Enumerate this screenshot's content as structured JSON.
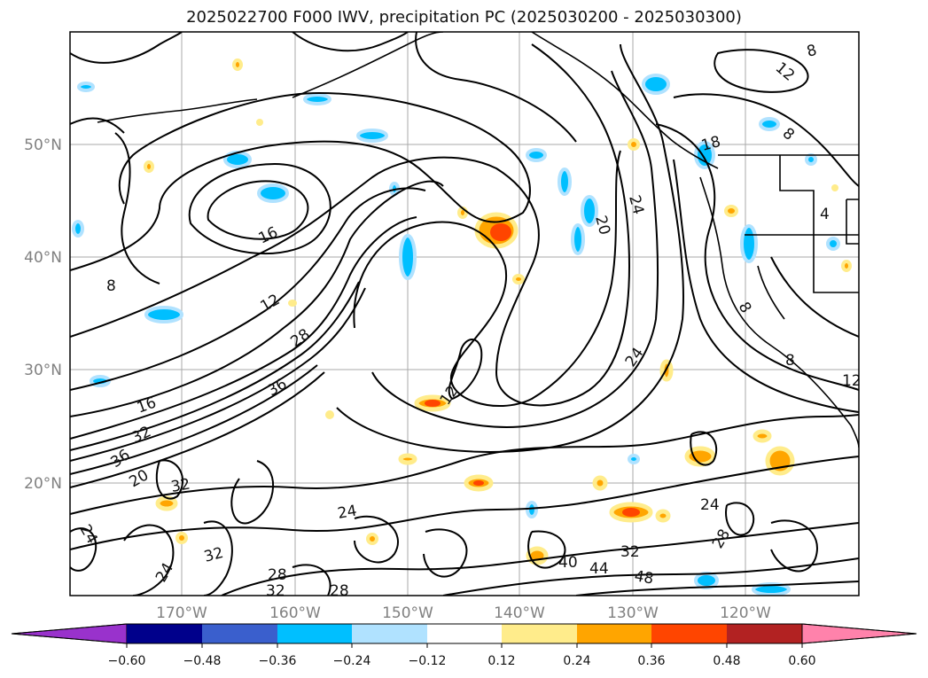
{
  "title": "2025022700 F000 IWV, precipitation PC (2025030200 - 2025030300)",
  "map": {
    "lon_labels": [
      "170°W",
      "160°W",
      "150°W",
      "140°W",
      "130°W",
      "120°W"
    ],
    "lat_labels": [
      "50°N",
      "40°N",
      "30°N",
      "20°N"
    ],
    "contour_labels": [
      "8",
      "12",
      "16",
      "20",
      "24",
      "28",
      "32",
      "36",
      "40",
      "44",
      "48",
      "12",
      "16",
      "24",
      "28",
      "32",
      "24",
      "32",
      "8",
      "8",
      "12",
      "18",
      "4",
      "8",
      "8",
      "24",
      "20",
      "24",
      "28",
      "32",
      "36",
      "12",
      "24",
      "28",
      "32"
    ]
  },
  "colorbar": {
    "ticks": [
      "−0.60",
      "−0.48",
      "−0.36",
      "−0.24",
      "−0.12",
      "0.12",
      "0.24",
      "0.36",
      "0.48",
      "0.60"
    ],
    "colors": [
      "#9932cc",
      "#00008b",
      "#3a5fcd",
      "#00bfff",
      "#b0e2ff",
      "#ffffff",
      "#ffec8b",
      "#ffa500",
      "#ff4500",
      "#b22222",
      "#ff82ab"
    ]
  }
}
